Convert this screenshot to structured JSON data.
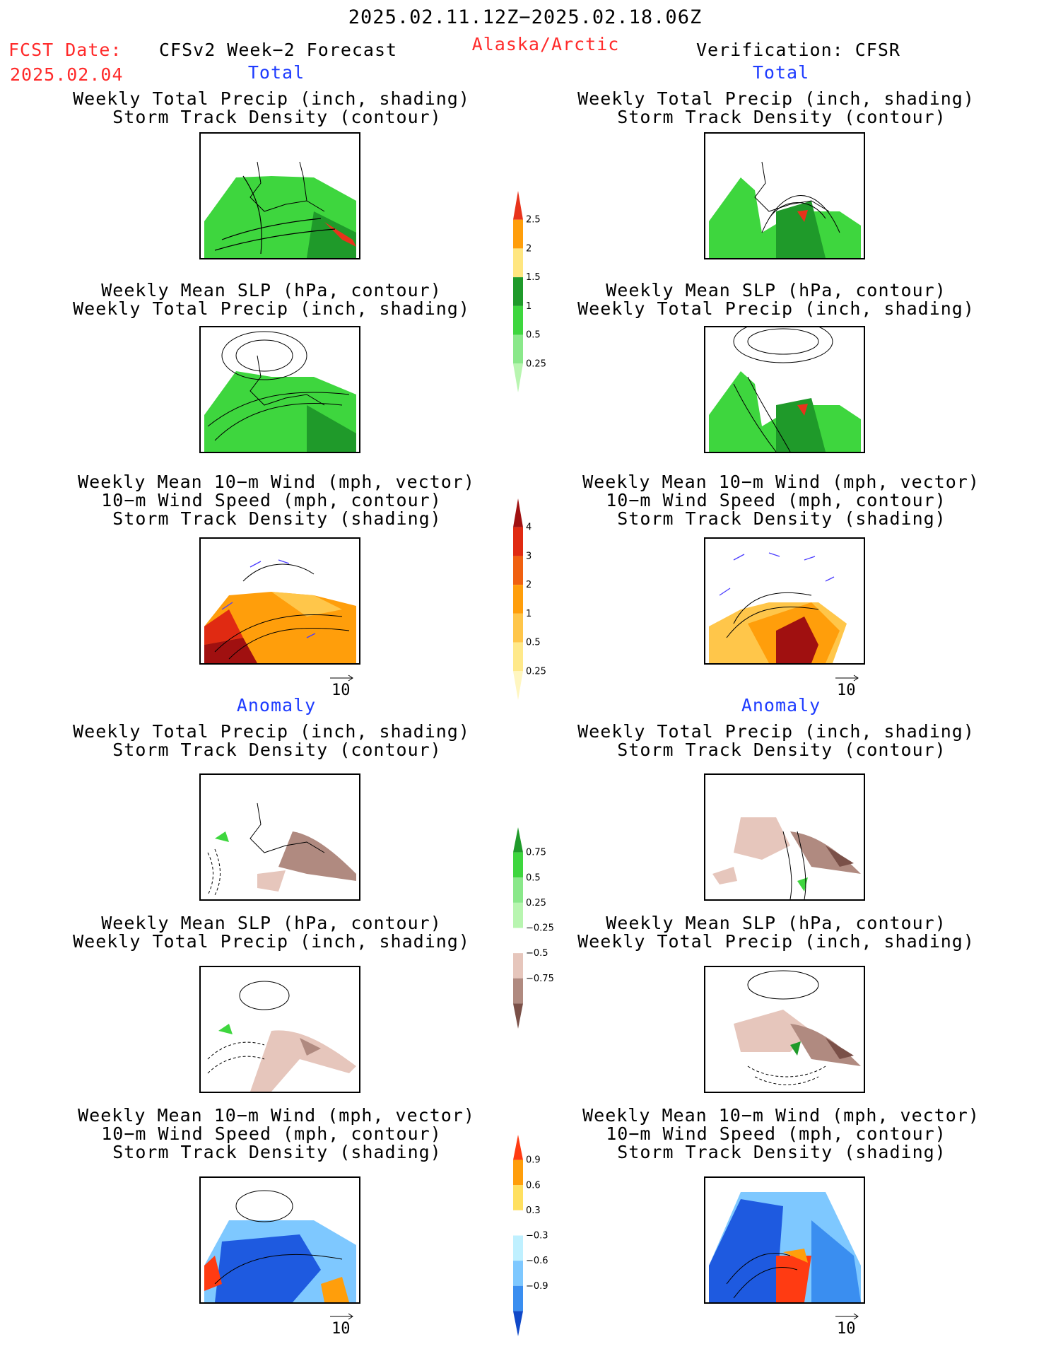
{
  "header": {
    "date_range": "2025.02.11.12Z−2025.02.18.06Z",
    "fcst_label": "FCST Date:",
    "fcst_date": "2025.02.04",
    "model_label": "CFSv2 Week−2 Forecast",
    "region": "Alaska/Arctic",
    "verification": "Verification: CFSR"
  },
  "sections": {
    "total_left": "Total",
    "total_right": "Total",
    "anomaly_left": "Anomaly",
    "anomaly_right": "Anomaly"
  },
  "titles": {
    "precip_storm": [
      "Weekly Total Precip (inch, shading)",
      "Storm Track Density (contour)"
    ],
    "slp_precip": [
      "Weekly Mean SLP (hPa, contour)",
      "Weekly Total Precip (inch, shading)"
    ],
    "wind_storm": [
      "Weekly Mean 10−m Wind (mph, vector)",
      "10−m Wind Speed (mph, contour)",
      "Storm Track Density (shading)"
    ]
  },
  "vector_scale": "10",
  "colorbars": {
    "precip_total": {
      "labels": [
        "2.5",
        "2",
        "1.5",
        "1",
        "0.5",
        "0.25"
      ],
      "colors": [
        "#e8331b",
        "#ff9e0b",
        "#ffe680",
        "#1f9a2a",
        "#3ed63e",
        "#8ae88a",
        "#b8f5b0"
      ]
    },
    "storm_total": {
      "labels": [
        "4",
        "3",
        "2",
        "1",
        "0.5",
        "0.25"
      ],
      "colors": [
        "#a01010",
        "#e02a12",
        "#f06010",
        "#ff9e0b",
        "#ffc64a",
        "#ffe98a",
        "#fff6c0"
      ]
    },
    "precip_anom": {
      "labels": [
        "0.75",
        "0.5",
        "0.25",
        "−0.25",
        "−0.5",
        "−0.75"
      ],
      "colors": [
        "#1f9a2a",
        "#3ed63e",
        "#8ae88a",
        "#b8f5b0",
        "#ffffff",
        "#e6c6bc",
        "#b08a80",
        "#7a5048"
      ]
    },
    "storm_anom": {
      "labels": [
        "0.9",
        "0.6",
        "0.3",
        "−0.3",
        "−0.6",
        "−0.9"
      ],
      "colors": [
        "#ff3b12",
        "#ff9e0b",
        "#ffe060",
        "#ffffff",
        "#bff0ff",
        "#7ec8ff",
        "#3a8ef0",
        "#1048c8"
      ]
    }
  },
  "legend_colors": {
    "green": "#3ed63e",
    "dark_green": "#1f9a2a",
    "orange": "#ff9e0b",
    "red": "#e02a12",
    "brown": "#b08a80",
    "blue": "#1e5ae0",
    "light_blue": "#7ec8ff",
    "title_red": "#ff2a2a",
    "title_blue": "#1e3cff"
  }
}
